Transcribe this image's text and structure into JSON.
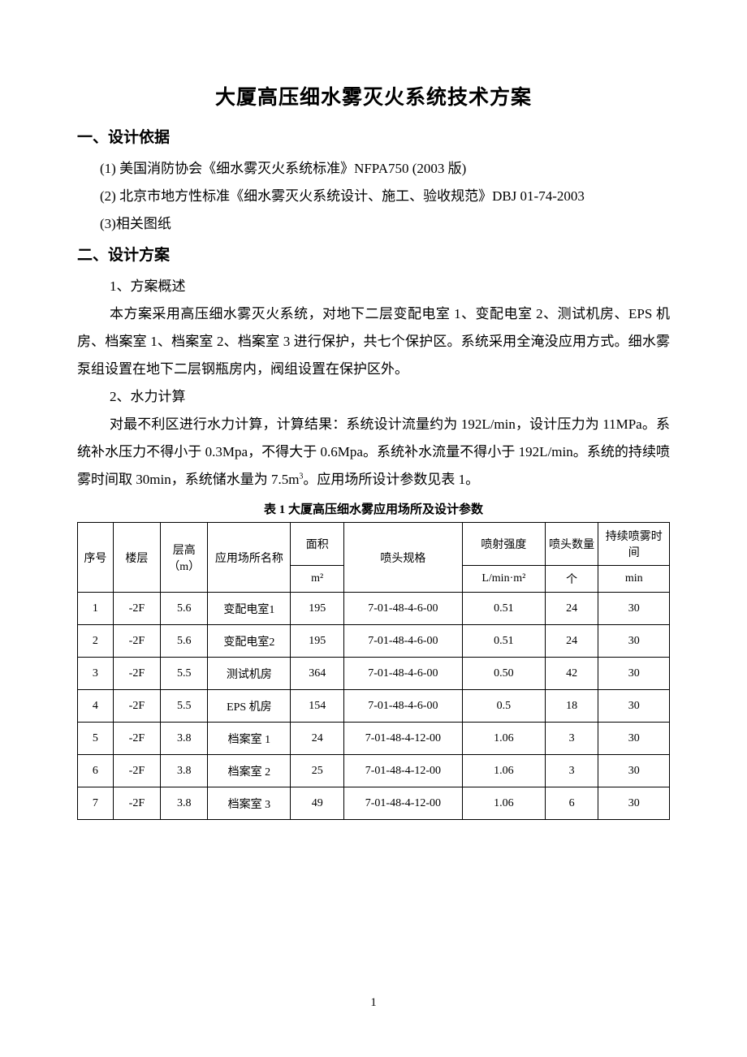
{
  "title": "大厦高压细水雾灭火系统技术方案",
  "section1": {
    "heading": "一、设计依据",
    "items": [
      "(1) 美国消防协会《细水雾灭火系统标准》NFPA750 (2003 版)",
      "(2) 北京市地方性标准《细水雾灭火系统设计、施工、验收规范》DBJ 01-74-2003",
      "(3)相关图纸"
    ]
  },
  "section2": {
    "heading": "二、设计方案",
    "sub1_heading": "1、方案概述",
    "sub1_body": "本方案采用高压细水雾灭火系统，对地下二层变配电室 1、变配电室 2、测试机房、EPS 机房、档案室 1、档案室 2、档案室 3 进行保护，共七个保护区。系统采用全淹没应用方式。细水雾泵组设置在地下二层钢瓶房内，阀组设置在保护区外。",
    "sub2_heading": "2、水力计算",
    "sub2_body_before": "对最不利区进行水力计算，计算结果：系统设计流量约为 192L/min，设计压力为 11MPa。系统补水压力不得小于 0.3Mpa，不得大于 0.6Mpa。系统补水流量不得小于 192L/min。系统的持续喷雾时间取 30min，系统储水量为 7.5m",
    "sub2_body_after": "。应用场所设计参数见表 1。"
  },
  "table": {
    "caption": "表 1 大厦高压细水雾应用场所及设计参数",
    "columns": [
      {
        "label": "序号",
        "unit": ""
      },
      {
        "label": "楼层",
        "unit": ""
      },
      {
        "label": "层高（m）",
        "unit": ""
      },
      {
        "label": "应用场所名称",
        "unit": ""
      },
      {
        "label": "面积",
        "unit": "m²"
      },
      {
        "label": "喷头规格",
        "unit": ""
      },
      {
        "label": "喷射强度",
        "unit": "L/min·m²"
      },
      {
        "label": "喷头数量",
        "unit": "个"
      },
      {
        "label": "持续喷雾时间",
        "unit": "min"
      }
    ],
    "col_widths": [
      "6%",
      "8%",
      "8%",
      "14%",
      "9%",
      "20%",
      "14%",
      "9%",
      "12%"
    ],
    "rows": [
      [
        "1",
        "-2F",
        "5.6",
        "变配电室1",
        "195",
        "7-01-48-4-6-00",
        "0.51",
        "24",
        "30"
      ],
      [
        "2",
        "-2F",
        "5.6",
        "变配电室2",
        "195",
        "7-01-48-4-6-00",
        "0.51",
        "24",
        "30"
      ],
      [
        "3",
        "-2F",
        "5.5",
        "测试机房",
        "364",
        "7-01-48-4-6-00",
        "0.50",
        "42",
        "30"
      ],
      [
        "4",
        "-2F",
        "5.5",
        "EPS 机房",
        "154",
        "7-01-48-4-6-00",
        "0.5",
        "18",
        "30"
      ],
      [
        "5",
        "-2F",
        "3.8",
        "档案室 1",
        "24",
        "7-01-48-4-12-00",
        "1.06",
        "3",
        "30"
      ],
      [
        "6",
        "-2F",
        "3.8",
        "档案室 2",
        "25",
        "7-01-48-4-12-00",
        "1.06",
        "3",
        "30"
      ],
      [
        "7",
        "-2F",
        "3.8",
        "档案室 3",
        "49",
        "7-01-48-4-12-00",
        "1.06",
        "6",
        "30"
      ]
    ]
  },
  "page_number": "1"
}
